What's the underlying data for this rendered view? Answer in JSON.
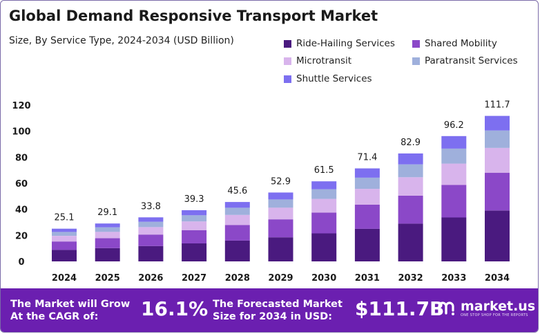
{
  "title": "Global Demand Responsive Transport Market",
  "subtitle": "Size, By Service Type, 2024-2034 (USD Billion)",
  "colors": {
    "ride_hailing": "#4a1a7f",
    "shared_mobility": "#8b48c8",
    "microtransit": "#d8b4ec",
    "paratransit": "#9fb0dc",
    "shuttle": "#7d6ff0",
    "footer_bg": "#6b1fb0"
  },
  "legend": [
    {
      "label": "Ride-Hailing Services",
      "color": "#4a1a7f"
    },
    {
      "label": "Shared Mobility",
      "color": "#8b48c8"
    },
    {
      "label": "Microtransit",
      "color": "#d8b4ec"
    },
    {
      "label": "Paratransit Services",
      "color": "#9fb0dc"
    },
    {
      "label": "Shuttle Services",
      "color": "#7d6ff0"
    }
  ],
  "chart_data": {
    "type": "bar",
    "stacked": true,
    "title": "Global Demand Responsive Transport Market",
    "subtitle": "Size, By Service Type, 2024-2034 (USD Billion)",
    "categories": [
      "2024",
      "2025",
      "2026",
      "2027",
      "2028",
      "2029",
      "2030",
      "2031",
      "2032",
      "2033",
      "2034"
    ],
    "totals": [
      25.1,
      29.1,
      33.8,
      39.3,
      45.6,
      52.9,
      61.5,
      71.4,
      82.9,
      96.2,
      111.7
    ],
    "total_labels": [
      "25.1",
      "29.1",
      "33.8",
      "39.3",
      "45.6",
      "52.9",
      "61.5",
      "71.4",
      "82.9",
      "96.2",
      "111.7"
    ],
    "series": [
      {
        "name": "Ride-Hailing Services",
        "color": "#4a1a7f",
        "values": [
          8.8,
          10.2,
          11.8,
          13.8,
          16.0,
          18.5,
          21.5,
          25.0,
          29.0,
          33.7,
          39.1
        ]
      },
      {
        "name": "Shared Mobility",
        "color": "#8b48c8",
        "values": [
          6.5,
          7.6,
          8.8,
          10.2,
          11.9,
          13.8,
          16.0,
          18.6,
          21.5,
          25.0,
          29.0
        ]
      },
      {
        "name": "Microtransit",
        "color": "#d8b4ec",
        "values": [
          4.3,
          4.9,
          5.7,
          6.7,
          7.8,
          9.0,
          10.5,
          12.1,
          14.1,
          16.4,
          19.0
        ]
      },
      {
        "name": "Paratransit Services",
        "color": "#9fb0dc",
        "values": [
          3.0,
          3.5,
          4.1,
          4.7,
          5.5,
          6.3,
          7.4,
          8.6,
          9.9,
          11.5,
          13.4
        ]
      },
      {
        "name": "Shuttle Services",
        "color": "#7d6ff0",
        "values": [
          2.5,
          2.9,
          3.4,
          3.9,
          4.4,
          5.3,
          6.1,
          7.1,
          8.4,
          9.6,
          11.2
        ]
      }
    ],
    "yticks": [
      0,
      20,
      40,
      60,
      80,
      100,
      120
    ],
    "ylim": [
      0,
      120
    ],
    "xlabel": "",
    "ylabel": "",
    "grid": false,
    "legend_position": "top-right"
  },
  "footer": {
    "cagr_label_line1": "The Market will Grow",
    "cagr_label_line2": "At the CAGR of:",
    "cagr_value": "16.1%",
    "forecast_label_line1": "The Forecasted Market",
    "forecast_label_line2": "Size for 2034 in USD:",
    "forecast_value": "$111.7B",
    "brand_name": "market.us",
    "brand_tagline": "ONE STOP SHOP FOR THE REPORTS"
  }
}
